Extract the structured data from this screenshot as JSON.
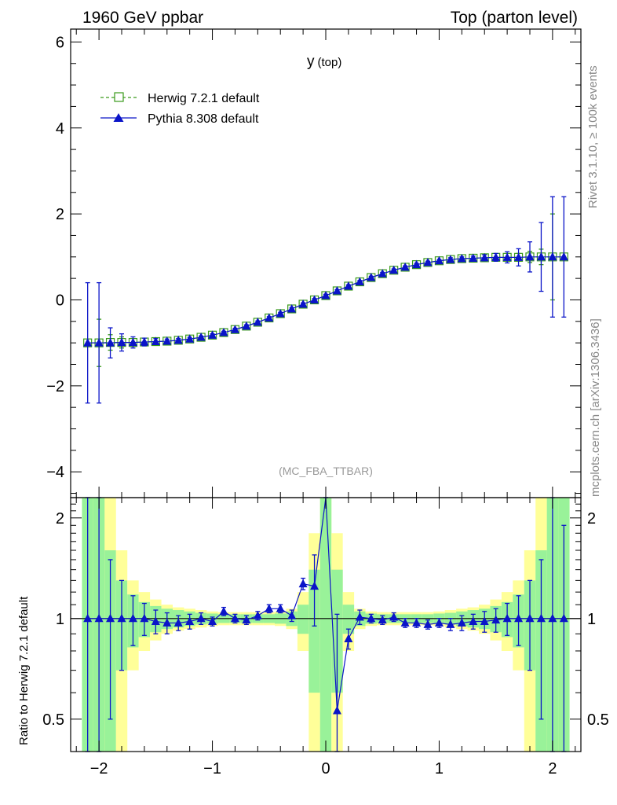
{
  "header": {
    "left": "1960 GeV ppbar",
    "right": "Top (parton level)"
  },
  "side_labels": {
    "rivet": "Rivet 3.1.10, ≥ 100k events",
    "mcplots": "mcplots.cern.ch [arXiv:1306.3436]"
  },
  "watermark": "(MC_FBA_TTBAR)",
  "chart_data": [
    {
      "type": "line",
      "title_main": "y",
      "title_sub": "(top)",
      "xlim": [
        -2.25,
        2.25
      ],
      "ylim": [
        -4.6,
        6.3
      ],
      "x_ticks": [
        -2,
        -1,
        0,
        1,
        2
      ],
      "y_ticks": [
        -4,
        -2,
        0,
        2,
        4,
        6
      ],
      "x_tick_labels": [
        "−2",
        "−1",
        "0",
        "1",
        "2"
      ],
      "y_tick_labels": [
        "−4",
        "−2",
        "0",
        "2",
        "4",
        "6"
      ],
      "legend_position": "top-left",
      "x": [
        -2.1,
        -2.0,
        -1.9,
        -1.8,
        -1.7,
        -1.6,
        -1.5,
        -1.4,
        -1.3,
        -1.2,
        -1.1,
        -1.0,
        -0.9,
        -0.8,
        -0.7,
        -0.6,
        -0.5,
        -0.4,
        -0.3,
        -0.2,
        -0.1,
        0.0,
        0.1,
        0.2,
        0.3,
        0.4,
        0.5,
        0.6,
        0.7,
        0.8,
        0.9,
        1.0,
        1.1,
        1.2,
        1.3,
        1.4,
        1.5,
        1.6,
        1.7,
        1.8,
        1.9,
        2.0,
        2.1
      ],
      "series": [
        {
          "name": "Herwig 7.2.1 default",
          "color": "#3a9a1a",
          "marker": "open-square",
          "line": "dashed",
          "values": [
            -1.0,
            -1.0,
            -0.99,
            -0.99,
            -0.99,
            -0.98,
            -0.97,
            -0.96,
            -0.94,
            -0.91,
            -0.87,
            -0.82,
            -0.76,
            -0.69,
            -0.61,
            -0.52,
            -0.42,
            -0.32,
            -0.21,
            -0.1,
            0.0,
            0.1,
            0.21,
            0.32,
            0.42,
            0.52,
            0.61,
            0.69,
            0.76,
            0.82,
            0.87,
            0.91,
            0.94,
            0.96,
            0.97,
            0.98,
            0.99,
            0.99,
            0.99,
            1.0,
            1.0,
            1.0,
            1.0
          ],
          "errors": [
            0,
            0.55,
            0.18,
            0.13,
            0.09,
            0.07,
            0.05,
            0.04,
            0.03,
            0.03,
            0.02,
            0.02,
            0.02,
            0.02,
            0.02,
            0.02,
            0.02,
            0.02,
            0.02,
            0.02,
            0.02,
            0.02,
            0.02,
            0.02,
            0.02,
            0.02,
            0.02,
            0.02,
            0.02,
            0.02,
            0.02,
            0.02,
            0.02,
            0.03,
            0.03,
            0.04,
            0.05,
            0.07,
            0.09,
            0.13,
            0.18,
            1.0,
            0
          ]
        },
        {
          "name": "Pythia 8.308 default",
          "color": "#0a14c8",
          "marker": "filled-triangle",
          "line": "solid",
          "values": [
            -1.0,
            -1.0,
            -1.0,
            -0.99,
            -0.99,
            -0.98,
            -0.97,
            -0.96,
            -0.94,
            -0.91,
            -0.87,
            -0.82,
            -0.76,
            -0.69,
            -0.61,
            -0.52,
            -0.42,
            -0.32,
            -0.21,
            -0.1,
            0.0,
            0.1,
            0.21,
            0.32,
            0.42,
            0.52,
            0.61,
            0.69,
            0.76,
            0.82,
            0.87,
            0.91,
            0.94,
            0.96,
            0.97,
            0.98,
            0.99,
            0.99,
            0.99,
            1.0,
            1.0,
            1.0,
            1.0
          ],
          "errors": [
            1.4,
            1.4,
            0.35,
            0.2,
            0.13,
            0.09,
            0.07,
            0.05,
            0.04,
            0.04,
            0.03,
            0.03,
            0.03,
            0.03,
            0.03,
            0.03,
            0.03,
            0.03,
            0.03,
            0.03,
            0.03,
            0.03,
            0.03,
            0.03,
            0.03,
            0.03,
            0.03,
            0.03,
            0.03,
            0.03,
            0.03,
            0.03,
            0.04,
            0.04,
            0.05,
            0.07,
            0.09,
            0.13,
            0.2,
            0.35,
            0.8,
            1.4,
            1.4
          ]
        }
      ]
    },
    {
      "type": "line",
      "ylabel": "Ratio to Herwig 7.2.1 default",
      "ylim": [
        0.4,
        2.3
      ],
      "y_ticks": [
        0.5,
        1,
        2
      ],
      "y_tick_labels": [
        "0.5",
        "1",
        "2"
      ],
      "x_tick_labels": [
        "−2",
        "−1",
        "0",
        "1",
        "2"
      ],
      "reference_line": 1,
      "band_edges": [
        -2.15,
        -2.05,
        -1.95,
        -1.85,
        -1.75,
        -1.65,
        -1.55,
        -1.45,
        -1.35,
        -1.25,
        -1.15,
        -1.05,
        -0.95,
        -0.85,
        -0.75,
        -0.65,
        -0.55,
        -0.45,
        -0.35,
        -0.25,
        -0.15,
        -0.05,
        0.05,
        0.15,
        0.25,
        0.35,
        0.45,
        0.55,
        0.65,
        0.75,
        0.85,
        0.95,
        1.05,
        1.15,
        1.25,
        1.35,
        1.45,
        1.55,
        1.65,
        1.75,
        1.85,
        1.95,
        2.05,
        2.15
      ],
      "green_band_halfwidth": [
        2.0,
        2.0,
        0.6,
        0.3,
        0.18,
        0.12,
        0.09,
        0.07,
        0.06,
        0.05,
        0.04,
        0.035,
        0.03,
        0.03,
        0.03,
        0.03,
        0.03,
        0.035,
        0.05,
        0.1,
        0.4,
        2.0,
        0.4,
        0.1,
        0.05,
        0.035,
        0.03,
        0.03,
        0.03,
        0.03,
        0.03,
        0.035,
        0.04,
        0.05,
        0.06,
        0.07,
        0.09,
        0.12,
        0.18,
        0.3,
        0.6,
        2.0,
        2.0
      ],
      "yellow_band_halfwidth": [
        2.0,
        2.0,
        2.0,
        0.6,
        0.3,
        0.2,
        0.14,
        0.1,
        0.08,
        0.07,
        0.06,
        0.05,
        0.045,
        0.045,
        0.045,
        0.045,
        0.045,
        0.05,
        0.07,
        0.2,
        0.8,
        2.0,
        0.8,
        0.2,
        0.07,
        0.05,
        0.045,
        0.045,
        0.045,
        0.045,
        0.045,
        0.05,
        0.06,
        0.07,
        0.08,
        0.1,
        0.14,
        0.2,
        0.3,
        0.6,
        2.0,
        2.0,
        2.0
      ],
      "x": [
        -2.1,
        -2.0,
        -1.9,
        -1.8,
        -1.7,
        -1.6,
        -1.5,
        -1.4,
        -1.3,
        -1.2,
        -1.1,
        -1.0,
        -0.9,
        -0.8,
        -0.7,
        -0.6,
        -0.5,
        -0.4,
        -0.3,
        -0.2,
        -0.1,
        0.0,
        0.1,
        0.2,
        0.3,
        0.4,
        0.5,
        0.6,
        0.7,
        0.8,
        0.9,
        1.0,
        1.1,
        1.2,
        1.3,
        1.4,
        1.5,
        1.6,
        1.7,
        1.8,
        1.9,
        2.0,
        2.1
      ],
      "series": [
        {
          "name": "Pythia 8.308 default",
          "color": "#0a14c8",
          "values": [
            1.0,
            1.0,
            1.0,
            1.0,
            1.0,
            1.0,
            0.98,
            0.97,
            0.97,
            0.98,
            1.0,
            0.98,
            1.05,
            1.0,
            0.99,
            1.02,
            1.07,
            1.07,
            1.02,
            1.27,
            1.25,
            2.45,
            0.53,
            0.87,
            1.01,
            1.0,
            0.99,
            1.01,
            0.97,
            0.97,
            0.96,
            0.97,
            0.96,
            0.97,
            0.98,
            0.98,
            0.99,
            1.0,
            1.0,
            1.0,
            1.0,
            1.0,
            1.0
          ],
          "errors": [
            1.5,
            1.5,
            0.5,
            0.3,
            0.17,
            0.11,
            0.08,
            0.07,
            0.05,
            0.05,
            0.04,
            0.03,
            0.03,
            0.03,
            0.03,
            0.03,
            0.03,
            0.03,
            0.04,
            0.05,
            0.3,
            0.1,
            0.5,
            0.06,
            0.05,
            0.03,
            0.03,
            0.03,
            0.03,
            0.03,
            0.03,
            0.03,
            0.04,
            0.05,
            0.05,
            0.07,
            0.08,
            0.11,
            0.17,
            0.3,
            0.5,
            1.5,
            0.9
          ]
        }
      ]
    }
  ]
}
